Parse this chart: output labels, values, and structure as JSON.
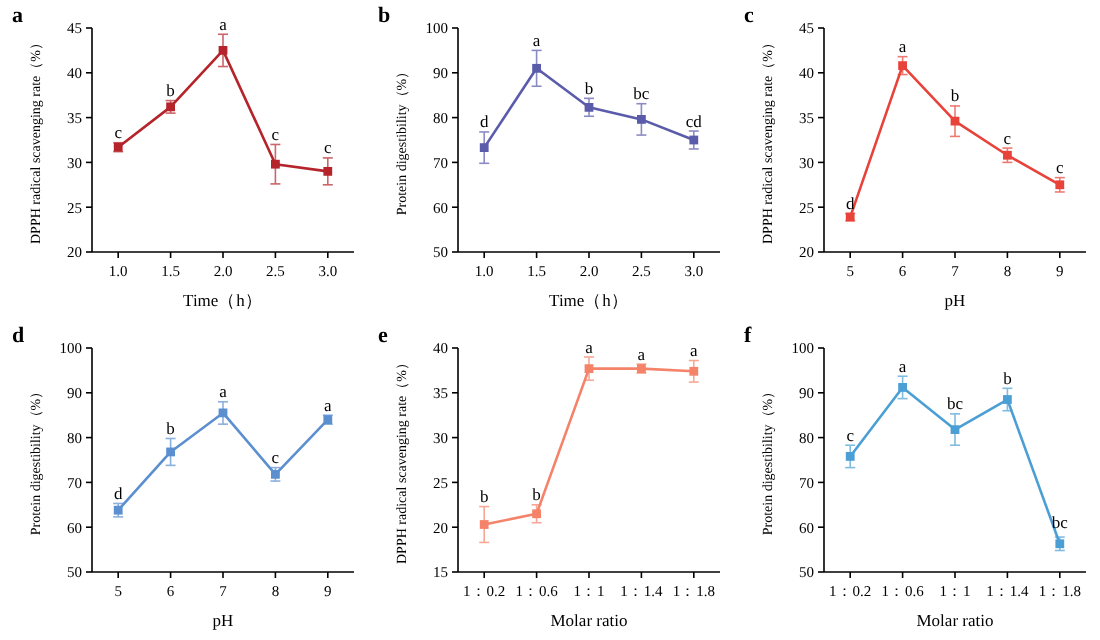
{
  "chart_data": [
    {
      "type": "line",
      "title": "a",
      "xlabel": "Time（h）",
      "ylabel": "DPPH radical scavenging rate（%）",
      "x": [
        1,
        1.5,
        2,
        2.5,
        3
      ],
      "xlim": [
        0.75,
        3.25
      ],
      "xticks": [
        {
          "value": 1,
          "label": "1.0"
        },
        {
          "value": 1.5,
          "label": "1.5"
        },
        {
          "value": 2,
          "label": "2.0"
        },
        {
          "value": 2.5,
          "label": "2.5"
        },
        {
          "value": 3,
          "label": "3.0"
        }
      ],
      "ylim": [
        20,
        45
      ],
      "yticks": [
        20,
        25,
        30,
        35,
        40,
        45
      ],
      "marker": "square",
      "grid": false,
      "series": [
        {
          "color": "#b5242a",
          "values": [
            31.7,
            36.2,
            42.5,
            29.8,
            29.0
          ],
          "errors": [
            0.5,
            0.7,
            1.8,
            2.2,
            1.5
          ]
        }
      ],
      "annotations": [
        {
          "text": "c",
          "x": 1,
          "y": 32.7
        },
        {
          "text": "b",
          "x": 1.5,
          "y": 37.4
        },
        {
          "text": "a",
          "x": 2,
          "y": 44.8
        },
        {
          "text": "c",
          "x": 2.5,
          "y": 32.5
        },
        {
          "text": "c",
          "x": 3,
          "y": 31.0
        }
      ]
    },
    {
      "type": "line",
      "title": "b",
      "xlabel": "Time（h）",
      "ylabel": "Protein digestibility（%）",
      "x": [
        1,
        1.5,
        2,
        2.5,
        3
      ],
      "xlim": [
        0.75,
        3.25
      ],
      "xticks": [
        {
          "value": 1,
          "label": "1.0"
        },
        {
          "value": 1.5,
          "label": "1.5"
        },
        {
          "value": 2,
          "label": "2.0"
        },
        {
          "value": 2.5,
          "label": "2.5"
        },
        {
          "value": 3,
          "label": "3.0"
        }
      ],
      "ylim": [
        50,
        100
      ],
      "yticks": [
        50,
        60,
        70,
        80,
        90,
        100
      ],
      "marker": "square",
      "grid": false,
      "series": [
        {
          "color": "#5b5bab",
          "values": [
            73.3,
            91,
            82.3,
            79.6,
            75
          ],
          "errors": [
            3.5,
            4,
            2,
            3.5,
            2
          ]
        }
      ],
      "annotations": [
        {
          "text": "d",
          "x": 1,
          "y": 77.8
        },
        {
          "text": "a",
          "x": 1.5,
          "y": 96
        },
        {
          "text": "b",
          "x": 2,
          "y": 85.3
        },
        {
          "text": "bc",
          "x": 2.5,
          "y": 84.1
        },
        {
          "text": "cd",
          "x": 3,
          "y": 78
        }
      ]
    },
    {
      "type": "line",
      "title": "c",
      "xlabel": "pH",
      "ylabel": "DPPH radical scavenging rate（%）",
      "x": [
        5,
        6,
        7,
        8,
        9
      ],
      "xlim": [
        4.5,
        9.5
      ],
      "xticks": [
        5,
        6,
        7,
        8,
        9
      ],
      "ylim": [
        20,
        45
      ],
      "yticks": [
        20,
        25,
        30,
        35,
        40,
        45
      ],
      "marker": "square",
      "grid": false,
      "series": [
        {
          "color": "#e8433a",
          "values": [
            23.9,
            40.8,
            34.6,
            30.8,
            27.5
          ],
          "errors": [
            0.4,
            1,
            1.7,
            0.8,
            0.8
          ]
        }
      ],
      "annotations": [
        {
          "text": "d",
          "x": 5,
          "y": 24.8
        },
        {
          "text": "a",
          "x": 6,
          "y": 42.3
        },
        {
          "text": "b",
          "x": 7,
          "y": 36.8
        },
        {
          "text": "c",
          "x": 8,
          "y": 32.1
        },
        {
          "text": "c",
          "x": 9,
          "y": 28.8
        }
      ]
    },
    {
      "type": "line",
      "title": "d",
      "xlabel": "pH",
      "ylabel": "Protein digestibility（%）",
      "x": [
        5,
        6,
        7,
        8,
        9
      ],
      "xlim": [
        4.5,
        9.5
      ],
      "xticks": [
        5,
        6,
        7,
        8,
        9
      ],
      "ylim": [
        50,
        100
      ],
      "yticks": [
        50,
        60,
        70,
        80,
        90,
        100
      ],
      "marker": "square",
      "grid": false,
      "series": [
        {
          "color": "#5b8fd0",
          "values": [
            63.8,
            76.8,
            85.5,
            71.8,
            84
          ],
          "errors": [
            1.5,
            3,
            2.5,
            1.5,
            1
          ]
        }
      ],
      "annotations": [
        {
          "text": "d",
          "x": 5,
          "y": 66.3
        },
        {
          "text": "b",
          "x": 6,
          "y": 80.8
        },
        {
          "text": "a",
          "x": 7,
          "y": 89
        },
        {
          "text": "c",
          "x": 8,
          "y": 74.3
        },
        {
          "text": "a",
          "x": 9,
          "y": 86
        }
      ]
    },
    {
      "type": "line",
      "title": "e",
      "xlabel": "Molar ratio",
      "ylabel": "DPPH radical scavenging rate（%）",
      "categories": [
        "1：0.2",
        "1：0.6",
        "1：1",
        "1：1.4",
        "1：1.8"
      ],
      "ylim": [
        15,
        40
      ],
      "yticks": [
        15,
        20,
        25,
        30,
        35,
        40
      ],
      "marker": "square",
      "grid": false,
      "series": [
        {
          "color": "#f4836a",
          "values": [
            20.3,
            21.5,
            37.7,
            37.7,
            37.4
          ],
          "errors": [
            2,
            1,
            1.3,
            0.5,
            1.2
          ]
        }
      ],
      "annotations": [
        {
          "text": "b",
          "x": "1：0.2",
          "y": 22.8
        },
        {
          "text": "b",
          "x": "1：0.6",
          "y": 23
        },
        {
          "text": "a",
          "x": "1：1",
          "y": 39.5
        },
        {
          "text": "a",
          "x": "1：1.4",
          "y": 38.7
        },
        {
          "text": "a",
          "x": "1：1.8",
          "y": 39.1
        }
      ]
    },
    {
      "type": "line",
      "title": "f",
      "xlabel": "Molar ratio",
      "ylabel": "Protein digestibility（%）",
      "categories": [
        "1：0.2",
        "1：0.6",
        "1：1",
        "1：1.4",
        "1：1.8"
      ],
      "ylim": [
        50,
        100
      ],
      "yticks": [
        50,
        60,
        70,
        80,
        90,
        100
      ],
      "marker": "square",
      "grid": false,
      "series": [
        {
          "color": "#4b9fd5",
          "values": [
            75.8,
            91.2,
            81.8,
            88.5,
            56.3
          ],
          "errors": [
            2.5,
            2.5,
            3.5,
            2.5,
            1.5
          ]
        }
      ],
      "annotations": [
        {
          "text": "c",
          "x": "1：0.2",
          "y": 79.3
        },
        {
          "text": "a",
          "x": "1：0.6",
          "y": 94.7
        },
        {
          "text": "bc",
          "x": "1：1",
          "y": 86.3
        },
        {
          "text": "b",
          "x": "1：1.4",
          "y": 92
        },
        {
          "text": "bc",
          "x": "1：1.8",
          "y": 59.8
        }
      ]
    }
  ]
}
